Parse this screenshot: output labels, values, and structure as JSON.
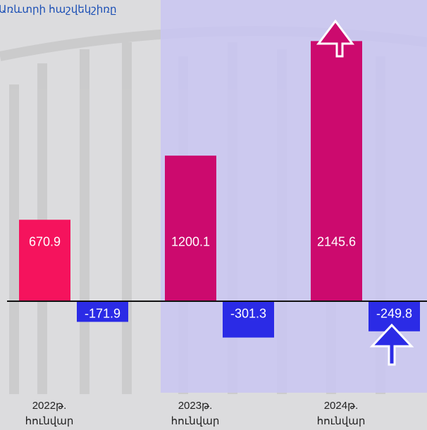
{
  "chart_data": {
    "type": "bar",
    "title": "Առևտրի հաշվեկշիռը",
    "categories": [
      "2022թ. հունվար",
      "2023թ. հունվար",
      "2024թ. հունվար"
    ],
    "series": [
      {
        "colors": [
          "#f5135d",
          "#cc0a6e",
          "#cc0a6e"
        ],
        "values": [
          670.9,
          1200.1,
          2145.6
        ]
      },
      {
        "colors": [
          "#2b2be6",
          "#2b2be6",
          "#2b2be6"
        ],
        "values": [
          -171.9,
          -301.3,
          -249.8
        ]
      }
    ],
    "ylim": [
      -350,
      2200
    ]
  }
}
